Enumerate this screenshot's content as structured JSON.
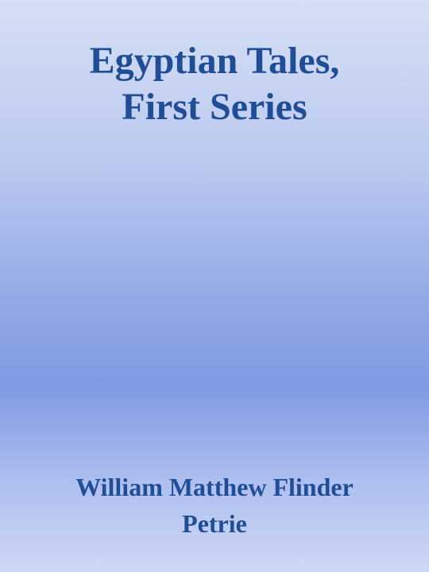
{
  "cover": {
    "title_lines": [
      "Egyptian Tales,",
      "First Series"
    ],
    "author_lines": [
      "William Matthew Flinder",
      "Petrie"
    ],
    "text_color": "#1f4e96",
    "background_colors": [
      "#d6dff5",
      "#7f9be3",
      "#cfd9f5"
    ]
  }
}
